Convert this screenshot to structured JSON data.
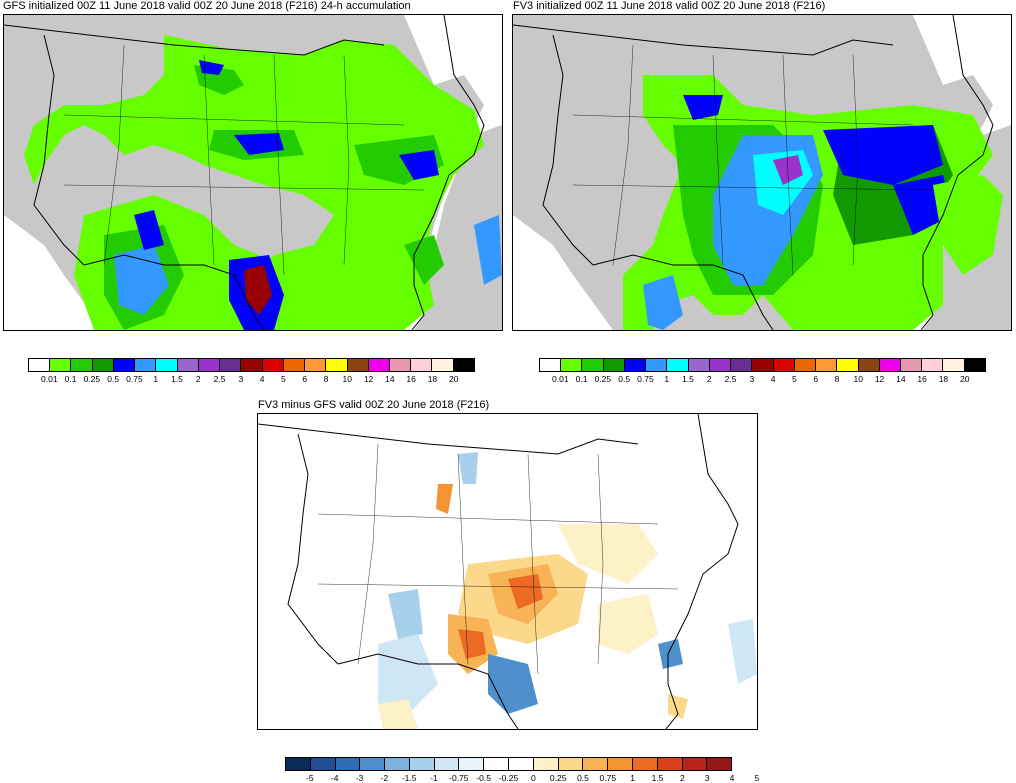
{
  "panels": [
    {
      "id": "gfs",
      "title": "GFS initialized 00Z 11 June 2018 valid 00Z 20 June 2018 (F216) 24-h accumulation"
    },
    {
      "id": "fv3",
      "title": "FV3 initialized 00Z 11 June 2018 valid 00Z 20 June 2018 (F216)"
    },
    {
      "id": "diff",
      "title": "FV3 minus GFS valid 00Z 20 June 2018 (F216)"
    }
  ],
  "precip_colorbar": {
    "colors": [
      "#ffffff",
      "#66ff00",
      "#22cc00",
      "#119900",
      "#0000ff",
      "#3399ff",
      "#00ffff",
      "#9966cc",
      "#9933cc",
      "#6a2d91",
      "#990000",
      "#dd0000",
      "#ee6600",
      "#ff9933",
      "#ffff00",
      "#8b4513",
      "#ee00ee",
      "#e899b0",
      "#ffd0dc",
      "#fff0e0",
      "#000000"
    ],
    "labels": [
      "0.01",
      "0.1",
      "0.25",
      "0.5",
      "0.75",
      "1",
      "1.5",
      "2",
      "2.5",
      "3",
      "4",
      "5",
      "6",
      "8",
      "10",
      "12",
      "14",
      "16",
      "18",
      "20"
    ]
  },
  "diff_colorbar": {
    "colors": [
      "#0b2a5c",
      "#1f4e94",
      "#2f6db5",
      "#4f8fcc",
      "#7bb3de",
      "#a6d0ec",
      "#cfe6f5",
      "#e8f3fa",
      "#ffffff",
      "#ffffff",
      "#fdf1c8",
      "#fcd88a",
      "#f8b356",
      "#f39331",
      "#ec6a23",
      "#d8401e",
      "#b8231b",
      "#941618"
    ],
    "labels": [
      "-5",
      "-4",
      "-3",
      "-2",
      "-1.5",
      "-1",
      "-0.75",
      "-0.5",
      "-0.25",
      "0",
      "0.25",
      "0.5",
      "0.75",
      "1",
      "1.5",
      "2",
      "3",
      "4",
      "5"
    ]
  }
}
